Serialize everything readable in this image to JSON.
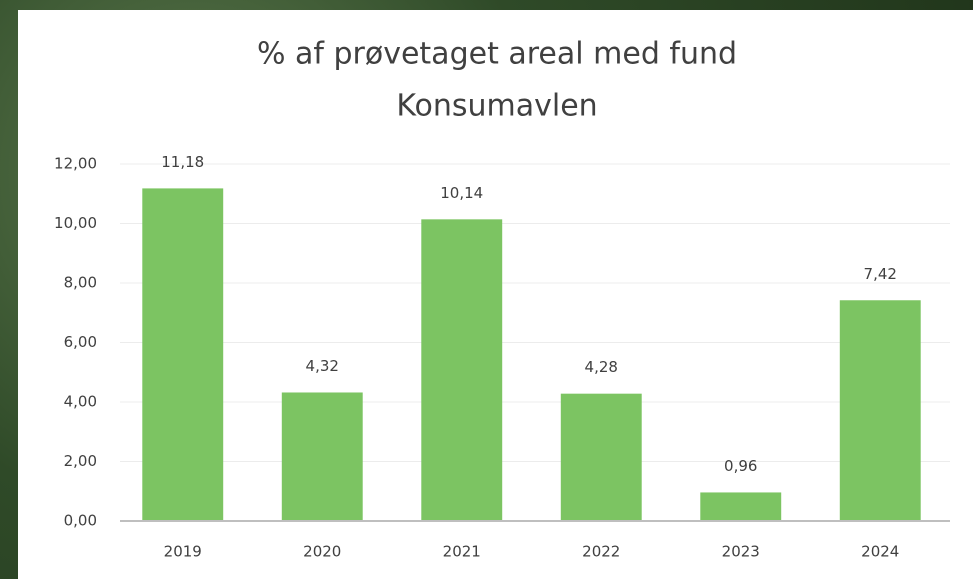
{
  "chart_data": {
    "type": "bar",
    "title": "% af prøvetaget areal med fund",
    "subtitle": "Konsumavlen",
    "categories": [
      "2019",
      "2020",
      "2021",
      "2022",
      "2023",
      "2024"
    ],
    "values": [
      11.18,
      4.32,
      10.14,
      4.28,
      0.96,
      7.42
    ],
    "value_labels": [
      "11,18",
      "4,32",
      "10,14",
      "4,28",
      "0,96",
      "7,42"
    ],
    "color": "#7cc462",
    "ylim": [
      0,
      12
    ],
    "yticks": [
      {
        "value": 0,
        "label": "0,00"
      },
      {
        "value": 2,
        "label": "2,00"
      },
      {
        "value": 4,
        "label": "4,00"
      },
      {
        "value": 6,
        "label": "6,00"
      },
      {
        "value": 8,
        "label": "8,00"
      },
      {
        "value": 10,
        "label": "10,00"
      },
      {
        "value": 12,
        "label": "12,00"
      }
    ],
    "grid": true
  }
}
